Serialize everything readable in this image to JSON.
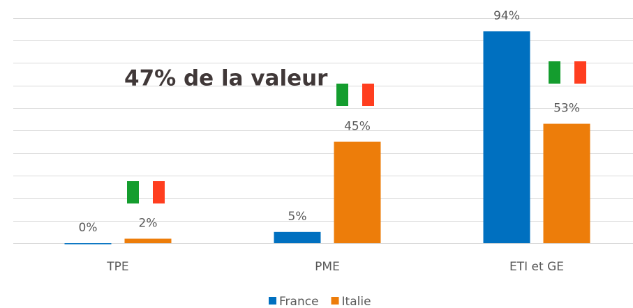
{
  "chart_data": {
    "type": "bar",
    "annotation": "47% de la valeur",
    "categories": [
      "TPE",
      "PME",
      "ETI et GE"
    ],
    "series": [
      {
        "name": "France",
        "color": "#0070c0",
        "values": [
          0,
          5,
          94
        ],
        "value_labels": [
          "0%",
          "5%",
          "94%"
        ]
      },
      {
        "name": "Italie",
        "color": "#ed7d0a",
        "values": [
          2,
          45,
          53
        ],
        "value_labels": [
          "2%",
          "45%",
          "53%"
        ]
      }
    ],
    "ylim": [
      0,
      100
    ],
    "yticks": [
      0,
      10,
      20,
      30,
      40,
      50,
      60,
      70,
      80,
      90,
      100
    ],
    "grid": true,
    "legend": "bottom"
  }
}
